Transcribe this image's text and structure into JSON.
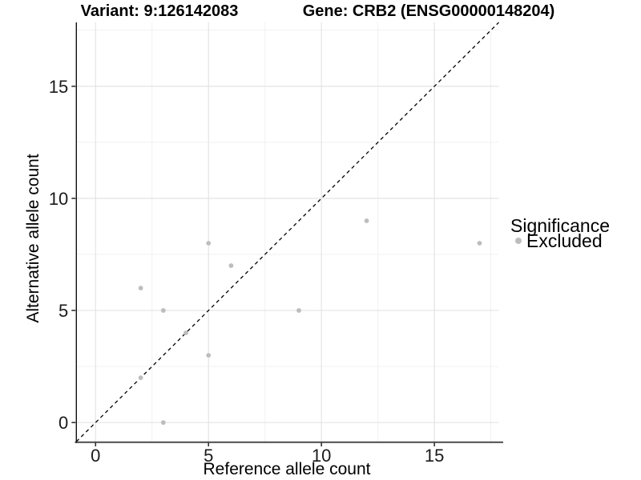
{
  "chart_data": {
    "type": "scatter",
    "title_left": "Variant: 9:126142083",
    "title_right": "Gene: CRB2 (ENSG00000148204)",
    "xlabel": "Reference allele count",
    "ylabel": "Alternative allele count",
    "xlim": [
      -0.85,
      17.85
    ],
    "ylim": [
      -0.85,
      17.85
    ],
    "major_ticks": [
      0,
      5,
      10,
      15
    ],
    "minor_gridlines": [
      2.5,
      7.5,
      12.5,
      17.5
    ],
    "grid": true,
    "identity_line": {
      "from": -0.85,
      "to": 17.85,
      "style": "dashed",
      "color": "#000000"
    },
    "series": [
      {
        "name": "Excluded",
        "color": "#bdbdbd",
        "points": [
          [
            2,
            2
          ],
          [
            2,
            6
          ],
          [
            3,
            0
          ],
          [
            3,
            5
          ],
          [
            4,
            4
          ],
          [
            5,
            3
          ],
          [
            5,
            8
          ],
          [
            6,
            7
          ],
          [
            9,
            5
          ],
          [
            12,
            9
          ],
          [
            17,
            8
          ]
        ]
      }
    ],
    "legend": {
      "title": "Significance",
      "position": "right",
      "entries": [
        {
          "label": "Excluded",
          "color": "#bdbdbd"
        }
      ]
    },
    "colors": {
      "background": "#ffffff",
      "grid_major": "#e4e4e4",
      "grid_minor": "#f1f1f1",
      "axis_line_x": "#555555",
      "axis_line_y": "#111111",
      "tick_mark": "#333333",
      "point": "#bdbdbd",
      "text": "#000000"
    }
  }
}
